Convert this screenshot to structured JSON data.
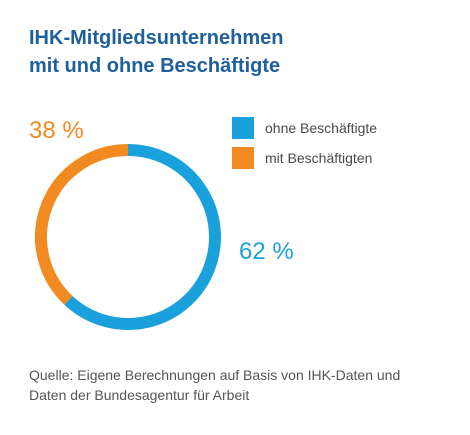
{
  "title_lines": [
    "IHK-Mitgliedsunternehmen",
    "mit und ohne Beschäftigte"
  ],
  "source_lines": [
    "Quelle: Eigene Berechnungen auf Basis von IHK-Daten und",
    "Daten der Bundesagentur für Arbeit"
  ],
  "chart_data": {
    "type": "pie",
    "style": "donut-ring",
    "categories": [
      "ohne Beschäftigte",
      "mit Beschäftigten"
    ],
    "values": [
      62,
      38
    ],
    "value_labels": [
      "62 %",
      "38 %"
    ],
    "colors": [
      "#1aa1dc",
      "#f18a21"
    ],
    "legend": "top-right"
  }
}
